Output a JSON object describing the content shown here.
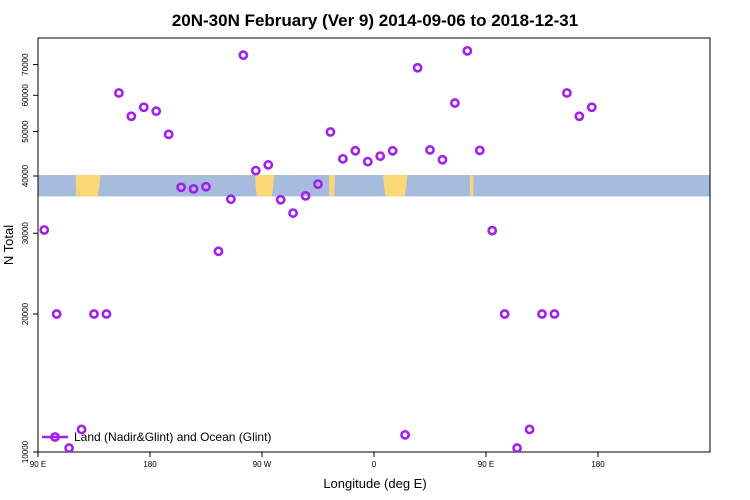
{
  "chart_data": {
    "type": "scatter",
    "title": "20N-30N February (Ver 9)   2014-09-06 to 2018-12-31",
    "xlabel": "Longitude (deg E)",
    "ylabel": "N Total",
    "xlim": [
      -90,
      180
    ],
    "ylim": [
      10000,
      80000
    ],
    "y_scale": "log",
    "grid": false,
    "x_ticks": [
      {
        "value": -90,
        "label": "90 E"
      },
      {
        "value": -45,
        "label": "180"
      },
      {
        "value": 0,
        "label": "90 W"
      },
      {
        "value": 45,
        "label": "0"
      },
      {
        "value": 90,
        "label": "90 E"
      },
      {
        "value": 135,
        "label": "180"
      }
    ],
    "y_ticks": [
      {
        "value": 10000,
        "label": "10000"
      },
      {
        "value": 20000,
        "label": "20000"
      },
      {
        "value": 30000,
        "label": "30000"
      },
      {
        "value": 40000,
        "label": "40000"
      },
      {
        "value": 50000,
        "label": "50000"
      },
      {
        "value": 60000,
        "label": "60000"
      },
      {
        "value": 70000,
        "label": "70000"
      }
    ],
    "map_strip": {
      "y_range": [
        36100,
        40200
      ],
      "land_longitudes": [
        [
          -74.8,
          -73.6
        ],
        [
          -74.2,
          -64.9
        ],
        [
          -2.8,
          4.9
        ],
        [
          26.9,
          29.3
        ],
        [
          48.7,
          58.4
        ],
        [
          83.5,
          85.0
        ]
      ],
      "ocean_color": "#a7bcdc",
      "land_color": "#fbd877"
    },
    "series": [
      {
        "name": "Land (Nadir&Glint) and Ocean (Glint)",
        "color": "#a020f0",
        "points": [
          {
            "x": -87.5,
            "y": 30500
          },
          {
            "x": -82.5,
            "y": 20000
          },
          {
            "x": -77.5,
            "y": 10200
          },
          {
            "x": -72.5,
            "y": 11200
          },
          {
            "x": -67.5,
            "y": 20000
          },
          {
            "x": -62.5,
            "y": 20000
          },
          {
            "x": -57.5,
            "y": 60700
          },
          {
            "x": -52.5,
            "y": 54000
          },
          {
            "x": -47.5,
            "y": 56500
          },
          {
            "x": -42.5,
            "y": 55400
          },
          {
            "x": -37.5,
            "y": 49300
          },
          {
            "x": -32.5,
            "y": 37800
          },
          {
            "x": -27.5,
            "y": 37500
          },
          {
            "x": -22.5,
            "y": 37900
          },
          {
            "x": -17.5,
            "y": 27400
          },
          {
            "x": -12.5,
            "y": 35600
          },
          {
            "x": -7.5,
            "y": 73400
          },
          {
            "x": -2.5,
            "y": 41100
          },
          {
            "x": 2.5,
            "y": 42300
          },
          {
            "x": 7.5,
            "y": 35500
          },
          {
            "x": 12.5,
            "y": 33200
          },
          {
            "x": 17.5,
            "y": 36200
          },
          {
            "x": 22.5,
            "y": 38400
          },
          {
            "x": 27.5,
            "y": 49900
          },
          {
            "x": 32.5,
            "y": 43600
          },
          {
            "x": 37.5,
            "y": 45400
          },
          {
            "x": 42.5,
            "y": 43000
          },
          {
            "x": 47.5,
            "y": 44200
          },
          {
            "x": 52.5,
            "y": 45400
          },
          {
            "x": 57.5,
            "y": 10900
          },
          {
            "x": 62.5,
            "y": 68900
          },
          {
            "x": 67.5,
            "y": 45600
          },
          {
            "x": 72.5,
            "y": 43400
          },
          {
            "x": 77.5,
            "y": 57700
          },
          {
            "x": 82.5,
            "y": 75000
          },
          {
            "x": 87.5,
            "y": 45500
          },
          {
            "x": 92.5,
            "y": 30400
          },
          {
            "x": 97.5,
            "y": 20000
          },
          {
            "x": 102.5,
            "y": 10200
          },
          {
            "x": 107.5,
            "y": 11200
          },
          {
            "x": 112.5,
            "y": 20000
          },
          {
            "x": 117.5,
            "y": 20000
          },
          {
            "x": 122.5,
            "y": 60700
          },
          {
            "x": 127.5,
            "y": 54000
          },
          {
            "x": 132.5,
            "y": 56500
          }
        ]
      }
    ],
    "legend": {
      "position": "bottom-left"
    }
  }
}
